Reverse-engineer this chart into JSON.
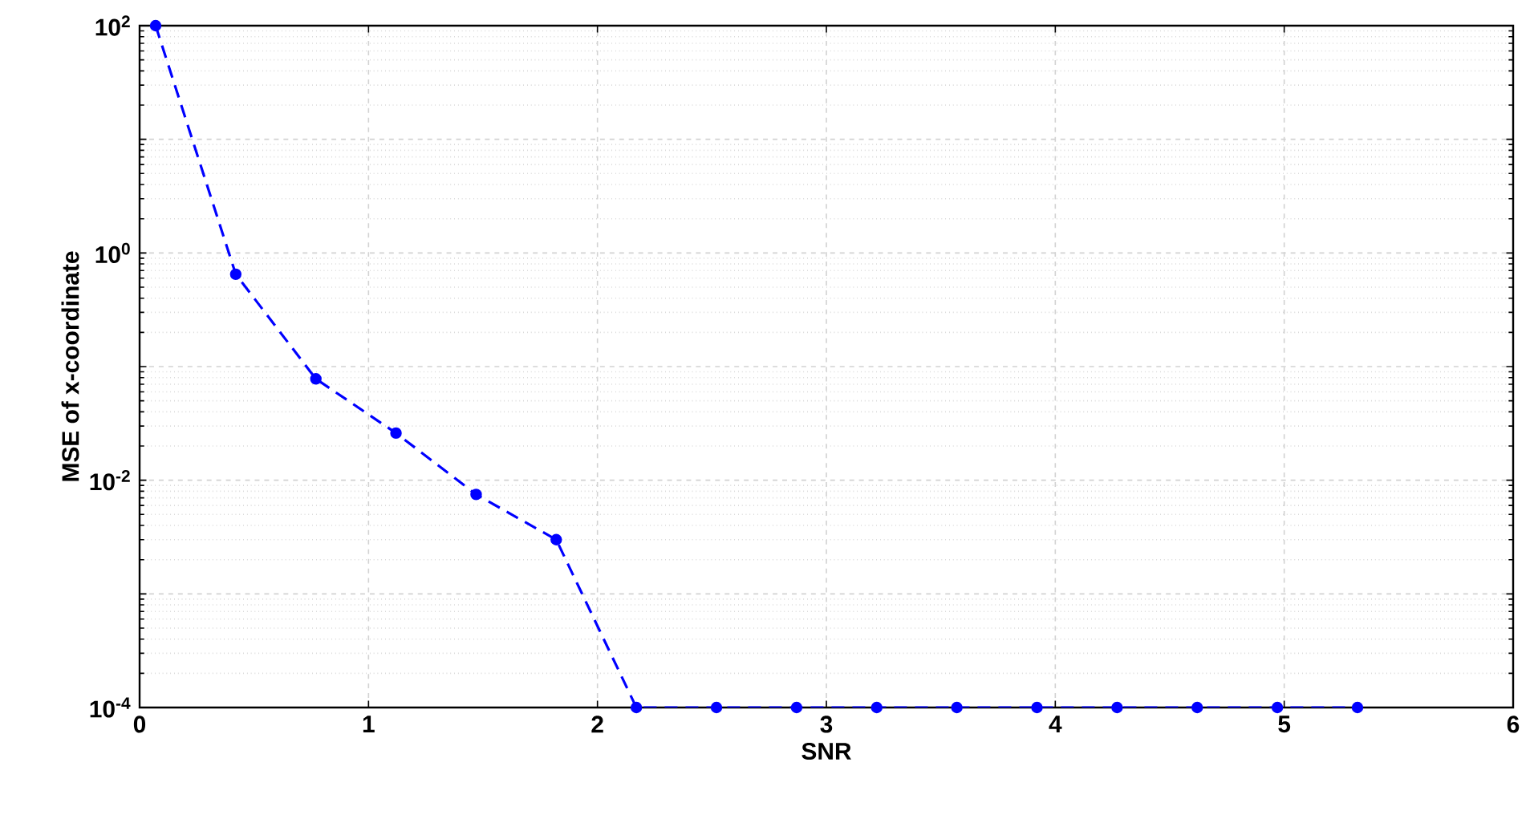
{
  "chart_data": {
    "type": "line",
    "xlabel": "SNR",
    "ylabel": "MSE of x-coordinate",
    "log": "y",
    "grid": true,
    "marker": "circle",
    "line_style": "dashed",
    "xlim": [
      0,
      6
    ],
    "ylim": [
      0.0001,
      100
    ],
    "xticks": [
      0,
      1,
      2,
      3,
      4,
      5,
      6
    ],
    "yticks": [
      {
        "value": 0.0001,
        "label": "10$^{-4}$"
      },
      {
        "value": 0.001,
        "label": null
      },
      {
        "value": 0.01,
        "label": "10$^{-2}$"
      },
      {
        "value": 0.1,
        "label": null
      },
      {
        "value": 1,
        "label": "10$^{0}$"
      },
      {
        "value": 10,
        "label": null
      },
      {
        "value": 100,
        "label": "10$^{2}$"
      }
    ],
    "series": [
      {
        "color": "#0000ff",
        "x": [
          0.07,
          0.42,
          0.77,
          1.12,
          1.47,
          1.82,
          2.17,
          2.52,
          2.87,
          3.22,
          3.57,
          3.92,
          4.27,
          4.62,
          4.97,
          5.32
        ],
        "values": [
          100,
          0.65,
          0.078,
          0.026,
          0.0075,
          0.003,
          0.0001,
          0.0001,
          0.0001,
          0.0001,
          0.0001,
          0.0001,
          0.0001,
          0.0001,
          0.0001,
          0.0001
        ]
      }
    ]
  }
}
